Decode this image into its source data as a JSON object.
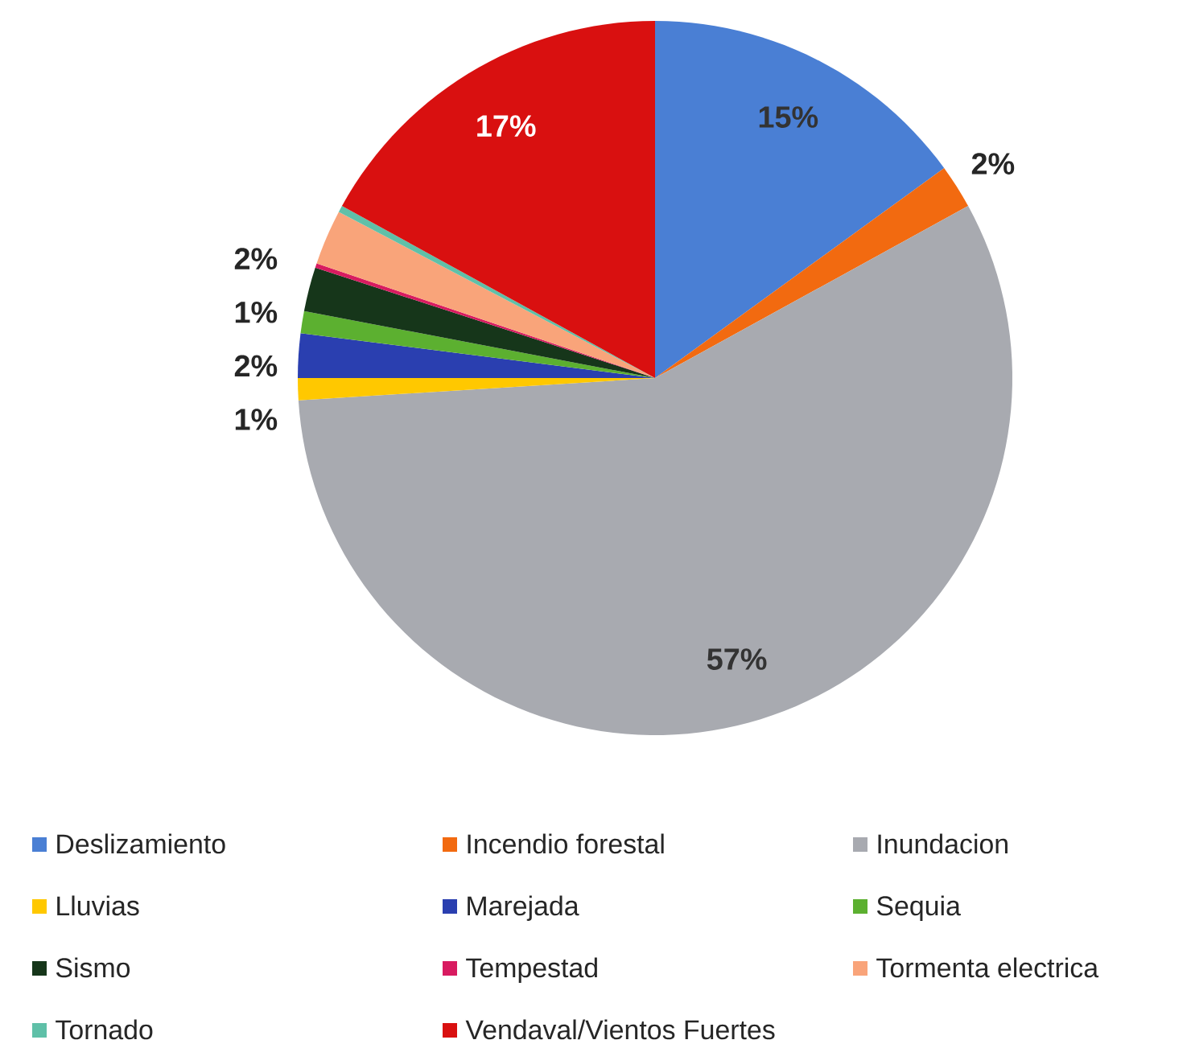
{
  "chart_data": {
    "type": "pie",
    "categories": [
      "Deslizamiento",
      "Incendio forestal",
      "Inundacion",
      "Lluvias",
      "Marejada",
      "Sequia",
      "Sismo",
      "Tempestad",
      "Tormenta electrica",
      "Tornado",
      "Vendaval/Vientos Fuertes"
    ],
    "values": [
      15,
      2,
      57,
      1,
      2,
      1,
      2,
      0.2,
      2.5,
      0.3,
      17
    ],
    "value_labels": [
      "15%",
      "2%",
      "57%",
      "1%",
      "2%",
      "1%",
      "2%",
      null,
      null,
      null,
      "17%"
    ],
    "colors": [
      "#4a7fd4",
      "#f26a10",
      "#a8aab0",
      "#ffc800",
      "#2a3fb0",
      "#5cb030",
      "#16361a",
      "#d81b60",
      "#f9a47a",
      "#5fc0a8",
      "#d91010"
    ],
    "legend": "bottom"
  }
}
